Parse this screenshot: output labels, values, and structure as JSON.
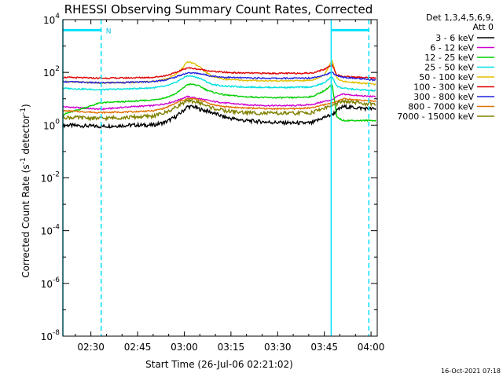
{
  "chart_data": {
    "type": "line",
    "title": "RHESSI Observing Summary Count Rates, Corrected",
    "xlabel": "Start Time (26-Jul-06 02:21:02)",
    "ylabel_main": "Corrected Count Rate (s",
    "ylabel_sup1": "-1",
    "ylabel_mid": " detector",
    "ylabel_sup2": "-1",
    "ylabel_end": ")",
    "x_unit": "minutes since 02:21:02",
    "xlim": [
      0,
      101
    ],
    "ylim": [
      1e-08,
      10000.0
    ],
    "yscale": "log",
    "grid": false,
    "x_ticks": [
      {
        "pos": 9,
        "label": "02:30"
      },
      {
        "pos": 24,
        "label": "02:45"
      },
      {
        "pos": 39,
        "label": "03:00"
      },
      {
        "pos": 54,
        "label": "03:15"
      },
      {
        "pos": 69,
        "label": "03:30"
      },
      {
        "pos": 84,
        "label": "03:45"
      },
      {
        "pos": 99,
        "label": "04:00"
      }
    ],
    "y_ticks": [
      {
        "value": 10000.0,
        "base": "10",
        "exp": "4"
      },
      {
        "value": 100.0,
        "base": "10",
        "exp": "2"
      },
      {
        "value": 1.0,
        "base": "10",
        "exp": "0"
      },
      {
        "value": 0.01,
        "base": "10",
        "exp": "-2"
      },
      {
        "value": 0.0001,
        "base": "10",
        "exp": "-4"
      },
      {
        "value": 1e-06,
        "base": "10",
        "exp": "-6"
      },
      {
        "value": 1e-08,
        "base": "10",
        "exp": "-8"
      }
    ],
    "legend_header": [
      "Det 1,3,4,5,6,9,",
      "Att 0"
    ],
    "legend_placement": "right",
    "annotation_n": "N",
    "timestamp": "16-Oct-2021 07:18",
    "night_segments": [
      [
        0,
        12.3
      ],
      [
        86.2,
        98.3
      ]
    ],
    "flag_level": 4000,
    "series": [
      {
        "name": "3 - 6 keV",
        "color": "#000000",
        "x": [
          0,
          12,
          22,
          29,
          33,
          36,
          38,
          40,
          42,
          44,
          46,
          48,
          52,
          58,
          66,
          74,
          80,
          84,
          86.5,
          88,
          90,
          95,
          100.5
        ],
        "y": [
          1.0,
          0.9,
          1.0,
          1.0,
          1.3,
          2.0,
          3.0,
          5.0,
          5.0,
          4.0,
          3.5,
          3.0,
          2.0,
          1.5,
          1.3,
          1.2,
          1.2,
          2.0,
          2.5,
          3.5,
          5.0,
          4.5,
          4.0
        ]
      },
      {
        "name": "6 - 12 keV",
        "color": "#d000d0",
        "x": [
          0,
          12,
          22,
          29,
          33,
          36,
          38,
          40,
          42,
          44,
          46,
          48,
          52,
          58,
          66,
          74,
          80,
          84,
          86.5,
          88,
          90,
          95,
          100.5
        ],
        "y": [
          5.0,
          4.0,
          5.0,
          5.5,
          6.5,
          8.0,
          10,
          12,
          11,
          10,
          9.0,
          8.0,
          7.0,
          6.0,
          5.5,
          5.5,
          6.0,
          8.0,
          9.0,
          12,
          15,
          13,
          12
        ]
      },
      {
        "name": "12 - 25 keV",
        "color": "#00d000",
        "x": [
          0,
          12,
          22,
          29,
          33,
          36,
          38,
          40,
          42,
          44,
          46,
          48,
          52,
          58,
          66,
          74,
          80,
          84,
          86.5,
          88,
          90,
          95,
          100.5
        ],
        "y": [
          2.5,
          7.0,
          8.0,
          9.0,
          11,
          15,
          22,
          35,
          35,
          30,
          22,
          18,
          14,
          12,
          11,
          11,
          12,
          20,
          35,
          2.0,
          1.5,
          1.5,
          1.5
        ]
      },
      {
        "name": "25 - 50 keV",
        "color": "#00e0e0",
        "x": [
          0,
          12,
          22,
          29,
          33,
          36,
          38,
          40,
          42,
          44,
          46,
          48,
          52,
          58,
          66,
          74,
          80,
          84,
          86.5,
          88,
          90,
          95,
          100.5
        ],
        "y": [
          25,
          22,
          24,
          26,
          30,
          40,
          55,
          75,
          70,
          60,
          45,
          35,
          30,
          28,
          27,
          27,
          28,
          40,
          70,
          30,
          25,
          22,
          20
        ]
      },
      {
        "name": "50 - 100 keV",
        "color": "#e0c000",
        "x": [
          0,
          12,
          22,
          29,
          33,
          36,
          38,
          40,
          42,
          44,
          46,
          48,
          52,
          58,
          66,
          74,
          80,
          84,
          86.5,
          88,
          90,
          95,
          100.5
        ],
        "y": [
          45,
          40,
          42,
          45,
          55,
          80,
          130,
          250,
          220,
          160,
          100,
          70,
          55,
          50,
          48,
          48,
          50,
          80,
          300,
          60,
          45,
          40,
          35
        ]
      },
      {
        "name": "100 - 300 keV",
        "color": "#e00000",
        "x": [
          0,
          12,
          22,
          29,
          33,
          36,
          38,
          40,
          42,
          44,
          46,
          48,
          52,
          58,
          66,
          74,
          80,
          84,
          86.5,
          88,
          90,
          95,
          100.5
        ],
        "y": [
          65,
          60,
          62,
          65,
          75,
          95,
          120,
          150,
          140,
          130,
          120,
          110,
          100,
          95,
          92,
          92,
          95,
          130,
          200,
          80,
          70,
          65,
          60
        ]
      },
      {
        "name": "300 - 800 keV",
        "color": "#2020e0",
        "x": [
          0,
          12,
          22,
          29,
          33,
          36,
          38,
          40,
          42,
          44,
          46,
          48,
          52,
          58,
          66,
          74,
          80,
          84,
          86.5,
          88,
          90,
          95,
          100.5
        ],
        "y": [
          45,
          40,
          42,
          45,
          52,
          65,
          80,
          95,
          95,
          90,
          80,
          72,
          65,
          62,
          60,
          60,
          62,
          80,
          100,
          75,
          65,
          58,
          50
        ]
      },
      {
        "name": "800 - 7000 keV",
        "color": "#e07000",
        "x": [
          0,
          12,
          22,
          29,
          33,
          36,
          38,
          40,
          42,
          44,
          46,
          48,
          52,
          58,
          66,
          74,
          80,
          84,
          86.5,
          88,
          90,
          95,
          100.5
        ],
        "y": [
          3.5,
          3.0,
          3.2,
          3.5,
          4.5,
          6.5,
          8.5,
          10,
          10,
          9.0,
          7.5,
          6.0,
          5.0,
          4.5,
          4.2,
          4.2,
          4.5,
          6.0,
          7.0,
          8.0,
          10,
          9.0,
          8.0
        ]
      },
      {
        "name": "7000 - 15000 keV",
        "color": "#808000",
        "x": [
          0,
          12,
          22,
          29,
          33,
          36,
          38,
          40,
          42,
          44,
          46,
          48,
          52,
          58,
          66,
          74,
          80,
          84,
          86.5,
          88,
          90,
          95,
          100.5
        ],
        "y": [
          2.0,
          1.8,
          2.0,
          2.2,
          3.0,
          4.5,
          6.5,
          8.0,
          8.0,
          7.0,
          5.5,
          4.5,
          3.5,
          3.0,
          2.8,
          2.8,
          3.0,
          4.5,
          5.5,
          6.5,
          8.0,
          7.0,
          6.0
        ]
      }
    ]
  }
}
